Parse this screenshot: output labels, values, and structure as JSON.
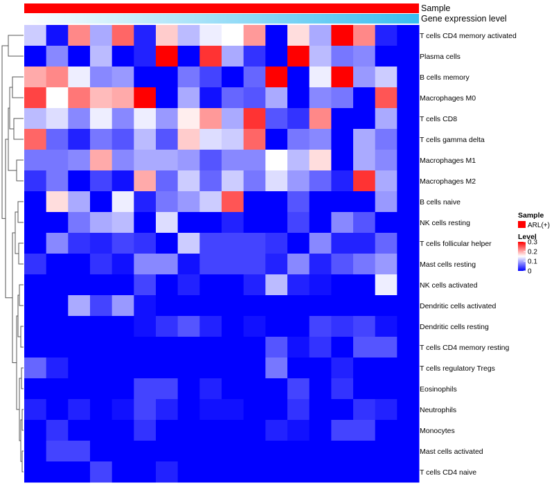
{
  "chart_data": {
    "type": "heatmap",
    "annotations": [
      {
        "name": "Sample",
        "colors": [
          "#ff0000"
        ]
      },
      {
        "name": "Gene expression level",
        "gradient": [
          "#ffffff",
          "#38bdf0"
        ]
      }
    ],
    "rows": [
      "T cells CD4 memory activated",
      "Plasma cells",
      "B cells memory",
      "Macrophages M0",
      "T cells CD8",
      "T cells gamma delta",
      "Macrophages M1",
      "Macrophages M2",
      "B cells naive",
      "NK cells resting",
      "T cells follicular helper",
      "Mast cells resting",
      "NK cells activated",
      "Dendritic cells activated",
      "Dendritic cells resting",
      "T cells CD4 memory resting",
      "T cells regulatory  Tregs",
      "Eosinophils",
      "Neutrophils",
      "Monocytes",
      "Mast cells activated",
      "T cells CD4 naive"
    ],
    "n_columns": 18,
    "values": [
      [
        0.12,
        0.01,
        0.22,
        0.1,
        0.24,
        0.02,
        0.18,
        0.11,
        0.14,
        0.15,
        0.21,
        0.0,
        0.17,
        0.1,
        0.3,
        0.22,
        0.02,
        0.0
      ],
      [
        0.0,
        0.08,
        0.0,
        0.11,
        0.0,
        0.02,
        0.3,
        0.0,
        0.27,
        0.1,
        0.03,
        0.0,
        0.3,
        0.11,
        0.07,
        0.08,
        0.0,
        0.0
      ],
      [
        0.2,
        0.22,
        0.14,
        0.08,
        0.09,
        0.0,
        0.0,
        0.07,
        0.04,
        0.0,
        0.06,
        0.3,
        0.0,
        0.14,
        0.3,
        0.09,
        0.12,
        0.0
      ],
      [
        0.26,
        0.15,
        0.23,
        0.19,
        0.2,
        0.3,
        0.0,
        0.1,
        0.01,
        0.06,
        0.05,
        0.1,
        0.0,
        0.08,
        0.07,
        0.0,
        0.25,
        0.0
      ],
      [
        0.11,
        0.13,
        0.08,
        0.14,
        0.08,
        0.14,
        0.09,
        0.16,
        0.21,
        0.1,
        0.27,
        0.05,
        0.03,
        0.22,
        0.0,
        0.0,
        0.1,
        0.0
      ],
      [
        0.24,
        0.06,
        0.02,
        0.07,
        0.05,
        0.11,
        0.05,
        0.18,
        0.13,
        0.12,
        0.24,
        0.0,
        0.07,
        0.08,
        0.0,
        0.1,
        0.07,
        0.0
      ],
      [
        0.07,
        0.07,
        0.08,
        0.2,
        0.08,
        0.1,
        0.1,
        0.09,
        0.05,
        0.08,
        0.08,
        0.15,
        0.11,
        0.17,
        0.0,
        0.1,
        0.08,
        0.0
      ],
      [
        0.03,
        0.07,
        0.0,
        0.04,
        0.01,
        0.2,
        0.06,
        0.12,
        0.06,
        0.12,
        0.07,
        0.13,
        0.09,
        0.06,
        0.02,
        0.27,
        0.1,
        0.0
      ],
      [
        0.0,
        0.17,
        0.1,
        0.0,
        0.14,
        0.02,
        0.07,
        0.09,
        0.12,
        0.25,
        0.0,
        0.0,
        0.05,
        0.0,
        0.0,
        0.0,
        0.09,
        0.0
      ],
      [
        0.0,
        0.0,
        0.07,
        0.1,
        0.11,
        0.0,
        0.13,
        0.0,
        0.0,
        0.02,
        0.0,
        0.0,
        0.04,
        0.0,
        0.08,
        0.05,
        0.0,
        0.0
      ],
      [
        0.0,
        0.08,
        0.03,
        0.02,
        0.04,
        0.03,
        0.0,
        0.12,
        0.04,
        0.04,
        0.04,
        0.03,
        0.0,
        0.08,
        0.02,
        0.02,
        0.06,
        0.0
      ],
      [
        0.03,
        0.0,
        0.0,
        0.03,
        0.01,
        0.08,
        0.08,
        0.01,
        0.04,
        0.04,
        0.04,
        0.02,
        0.08,
        0.02,
        0.05,
        0.07,
        0.09,
        0.0
      ],
      [
        0.0,
        0.0,
        0.0,
        0.0,
        0.0,
        0.04,
        0.0,
        0.02,
        0.0,
        0.0,
        0.02,
        0.11,
        0.02,
        0.01,
        0.0,
        0.0,
        0.14,
        0.0
      ],
      [
        0.0,
        0.0,
        0.1,
        0.04,
        0.09,
        0.01,
        0.0,
        0.0,
        0.0,
        0.0,
        0.0,
        0.0,
        0.0,
        0.0,
        0.0,
        0.0,
        0.0,
        0.0
      ],
      [
        0.0,
        0.0,
        0.0,
        0.0,
        0.0,
        0.01,
        0.03,
        0.05,
        0.02,
        0.0,
        0.01,
        0.0,
        0.0,
        0.04,
        0.03,
        0.04,
        0.01,
        0.0
      ],
      [
        0.0,
        0.0,
        0.0,
        0.0,
        0.0,
        0.0,
        0.0,
        0.0,
        0.0,
        0.0,
        0.0,
        0.05,
        0.01,
        0.03,
        0.0,
        0.05,
        0.05,
        0.0
      ],
      [
        0.06,
        0.02,
        0.0,
        0.0,
        0.0,
        0.0,
        0.0,
        0.0,
        0.0,
        0.0,
        0.0,
        0.07,
        0.0,
        0.0,
        0.02,
        0.0,
        0.0,
        0.0
      ],
      [
        0.0,
        0.0,
        0.0,
        0.0,
        0.0,
        0.04,
        0.04,
        0.0,
        0.02,
        0.0,
        0.0,
        0.0,
        0.04,
        0.0,
        0.03,
        0.0,
        0.0,
        0.0
      ],
      [
        0.02,
        0.0,
        0.02,
        0.0,
        0.01,
        0.04,
        0.02,
        0.0,
        0.01,
        0.01,
        0.0,
        0.0,
        0.03,
        0.0,
        0.0,
        0.03,
        0.02,
        0.0
      ],
      [
        0.0,
        0.03,
        0.0,
        0.0,
        0.0,
        0.03,
        0.0,
        0.0,
        0.0,
        0.0,
        0.0,
        0.02,
        0.01,
        0.0,
        0.04,
        0.04,
        0.0,
        0.0
      ],
      [
        0.0,
        0.04,
        0.04,
        0.0,
        0.0,
        0.0,
        0.0,
        0.0,
        0.0,
        0.0,
        0.0,
        0.0,
        0.0,
        0.0,
        0.0,
        0.0,
        0.0,
        0.0
      ],
      [
        0.0,
        0.0,
        0.0,
        0.04,
        0.0,
        0.0,
        0.02,
        0.0,
        0.0,
        0.0,
        0.0,
        0.0,
        0.0,
        0.0,
        0.0,
        0.0,
        0.0,
        0.0
      ]
    ],
    "color_scale": {
      "min": 0,
      "mid": 0.15,
      "max": 0.3,
      "low": "#0000ff",
      "midcolor": "#ffffff",
      "high": "#ff0000"
    },
    "row_dendrogram": true,
    "legend": {
      "placement": "right",
      "sample_title": "Sample",
      "sample_entries": [
        {
          "label": "ARL(+)",
          "color": "#ff0000"
        }
      ],
      "level_title": "Level",
      "level_ticks": [
        {
          "value": 0.3,
          "label": "0.3"
        },
        {
          "value": 0.2,
          "label": "0.2"
        },
        {
          "value": 0.1,
          "label": "0.1"
        },
        {
          "value": 0,
          "label": "0"
        }
      ]
    }
  }
}
